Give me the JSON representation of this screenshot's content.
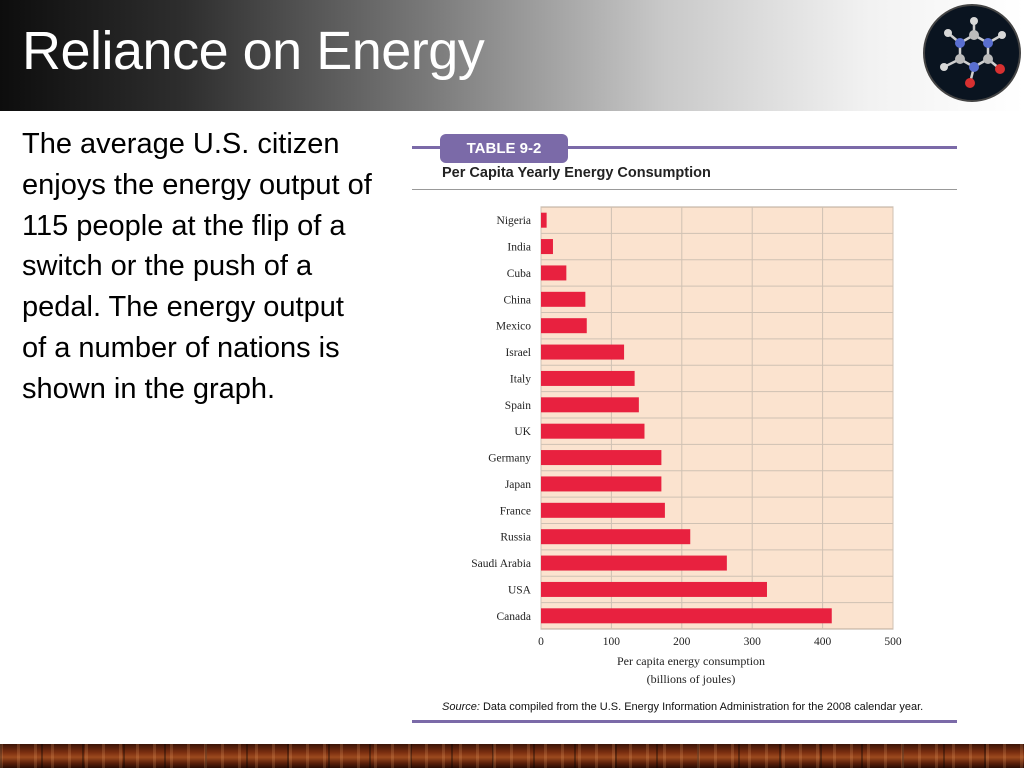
{
  "slide": {
    "title": "Reliance on Energy",
    "body": "The average U.S. citizen enjoys the energy output of 115 people at the flip of a switch or the push of a pedal. The energy output of a number of nations is shown in the graph."
  },
  "figure": {
    "tab_label": "TABLE 9-2",
    "title": "Per Capita Yearly Energy Consumption",
    "source_prefix": "Source:",
    "source_text": " Data compiled from the U.S. Energy Information Administration for the 2008 calendar year."
  },
  "logo": {
    "icon": "molecule-icon"
  },
  "colors": {
    "bar": "#e8213f",
    "plot_bg": "#fbe3cf",
    "accent": "#7b6aa8"
  },
  "chart_data": {
    "type": "bar",
    "orientation": "horizontal",
    "categories": [
      "Nigeria",
      "India",
      "Cuba",
      "China",
      "Mexico",
      "Israel",
      "Italy",
      "Spain",
      "UK",
      "Germany",
      "Japan",
      "France",
      "Russia",
      "Saudi Arabia",
      "USA",
      "Canada"
    ],
    "values": [
      8,
      17,
      36,
      63,
      65,
      118,
      133,
      139,
      147,
      171,
      171,
      176,
      212,
      264,
      321,
      413
    ],
    "xlabel_lines": [
      "Per capita energy consumption",
      "(billions of joules)"
    ],
    "xticks": [
      0,
      100,
      200,
      300,
      400,
      500
    ],
    "xlim": [
      0,
      500
    ],
    "grid": true
  }
}
